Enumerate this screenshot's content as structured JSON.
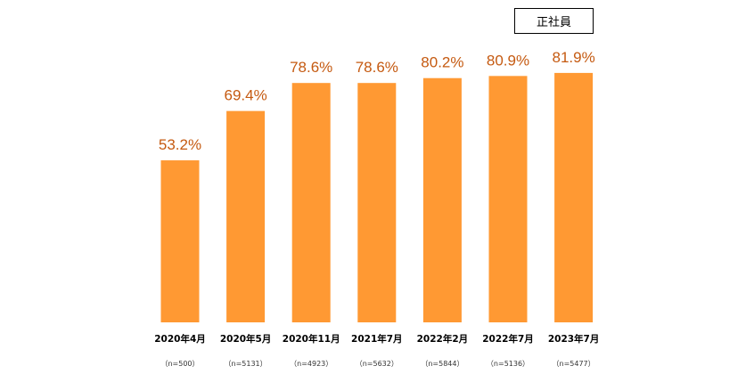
{
  "legend": {
    "label": "正社員"
  },
  "colors": {
    "bar": "#ff9933",
    "value_label": "#c55a11"
  },
  "chart_data": {
    "type": "bar",
    "categories": [
      "2020年4月",
      "2020年5月",
      "2020年11月",
      "2021年7月",
      "2022年2月",
      "2022年7月",
      "2023年7月"
    ],
    "sample_sizes": [
      "（n=500）",
      "（n=5131）",
      "（n=4923）",
      "（n=5632）",
      "（n=5844）",
      "（n=5136）",
      "（n=5477）"
    ],
    "values": [
      53.2,
      69.4,
      78.6,
      78.6,
      80.2,
      80.9,
      81.9
    ],
    "value_labels": [
      "53.2%",
      "69.4%",
      "78.6%",
      "78.6%",
      "80.2%",
      "80.9%",
      "81.9%"
    ],
    "series": [
      {
        "name": "正社員",
        "values": [
          53.2,
          69.4,
          78.6,
          78.6,
          80.2,
          80.9,
          81.9
        ]
      }
    ],
    "ylim": [
      0,
      100
    ],
    "grid": false,
    "legend_position": "top-right"
  }
}
